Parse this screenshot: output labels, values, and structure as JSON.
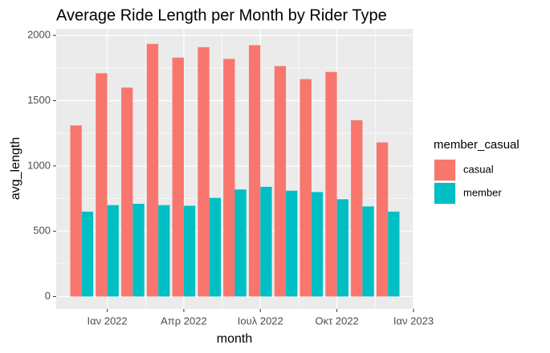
{
  "chart_data": {
    "type": "bar",
    "title": "Average Ride Length per Month by Rider Type",
    "x_label": "month",
    "y_label": "avg_length",
    "legend_title": "member_casual",
    "x": [
      "2021-12",
      "2022-01",
      "2022-02",
      "2022-03",
      "2022-04",
      "2022-05",
      "2022-06",
      "2022-07",
      "2022-08",
      "2022-09",
      "2022-10",
      "2022-11",
      "2022-12"
    ],
    "series": [
      {
        "name": "casual",
        "color": "#F8766D",
        "values": [
          1310,
          1710,
          1600,
          1935,
          1830,
          1910,
          1820,
          1925,
          1765,
          1665,
          1720,
          1350,
          1180
        ]
      },
      {
        "name": "member",
        "color": "#00BFC4",
        "values": [
          650,
          700,
          710,
          700,
          695,
          755,
          820,
          840,
          810,
          800,
          745,
          690,
          650
        ]
      }
    ],
    "xlim": [
      "2021-11",
      "2023-01"
    ],
    "xticks": [
      {
        "value": "2022-01",
        "label": "Ιαν 2022"
      },
      {
        "value": "2022-04",
        "label": "Απρ 2022"
      },
      {
        "value": "2022-07",
        "label": "Ιουλ 2022"
      },
      {
        "value": "2022-10",
        "label": "Οκτ 2022"
      },
      {
        "value": "2023-01",
        "label": "Ιαν 2023"
      }
    ],
    "ylim": [
      -95,
      2050
    ],
    "yticks": [
      0,
      500,
      1000,
      1500,
      2000
    ],
    "grid": true,
    "legend": "right"
  }
}
